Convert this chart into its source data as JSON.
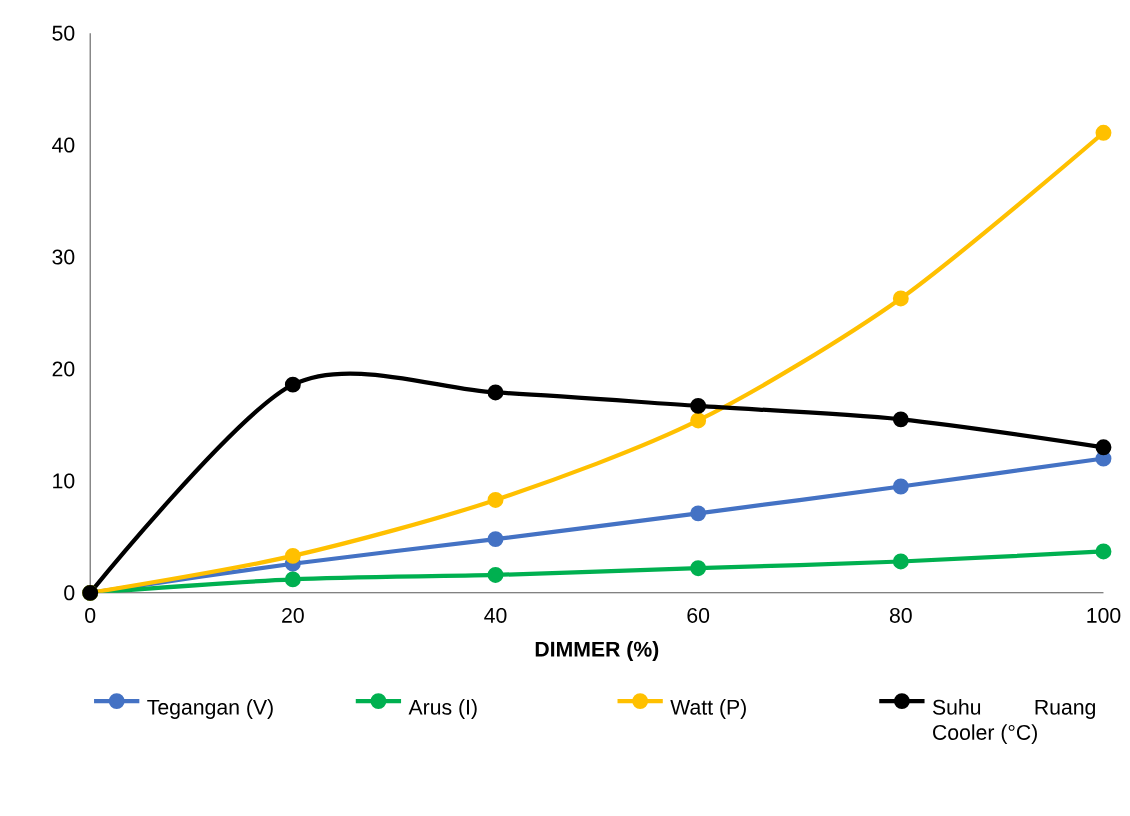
{
  "chart_data": {
    "type": "line",
    "xlabel": "DIMMER (%)",
    "x": [
      0,
      20,
      40,
      60,
      80,
      100
    ],
    "xlim": [
      0,
      100
    ],
    "xticks": [
      0,
      20,
      40,
      60,
      80,
      100
    ],
    "ylim": [
      0,
      50
    ],
    "yticks": [
      0,
      10,
      20,
      30,
      40,
      50
    ],
    "grid": false,
    "legend": "bottom",
    "marker": "circle",
    "series": [
      {
        "name": "Tegangan (V)",
        "color": "#4472c4",
        "values": [
          0,
          2.6,
          4.8,
          7.1,
          9.5,
          12.0
        ]
      },
      {
        "name": "Arus (I)",
        "color": "#00b050",
        "values": [
          0,
          1.2,
          1.6,
          2.2,
          2.8,
          3.7
        ]
      },
      {
        "name": "Watt (P)",
        "color": "#ffc000",
        "values": [
          0,
          3.3,
          8.3,
          15.4,
          26.3,
          41.1
        ]
      },
      {
        "name": "Suhu Ruang Cooler (°C)",
        "color": "#000000",
        "values": [
          0,
          18.6,
          17.9,
          16.7,
          15.5,
          13.0
        ]
      }
    ]
  }
}
